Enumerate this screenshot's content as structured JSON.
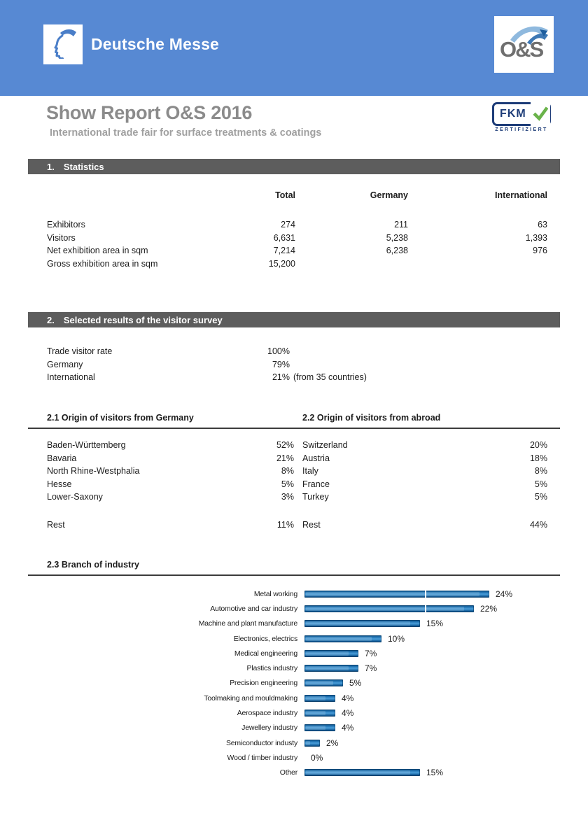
{
  "colors": {
    "header_bg": "#5789d3",
    "section_bar_bg": "#5d5d5d",
    "title_gray": "#8b8b8b",
    "fkm_navy": "#1d3c78",
    "fkm_green": "#6ab34a",
    "bar_blue": "#1b6cab"
  },
  "header": {
    "brand": "Deutsche Messe",
    "os_logo_text": "O&S"
  },
  "title": {
    "main": "Show Report O&S 2016",
    "subtitle": "International trade fair for surface treatments & coatings"
  },
  "fkm_badge": {
    "label": "FKM",
    "caption": "ZERTIFIZIERT"
  },
  "statistics": {
    "heading_number": "1.",
    "heading_text": "Statistics",
    "columns": [
      "Total",
      "Germany",
      "International"
    ],
    "rows": [
      {
        "label": "Exhibitors",
        "values": [
          "274",
          "211",
          "63"
        ]
      },
      {
        "label": "Visitors",
        "values": [
          "6,631",
          "5,238",
          "1,393"
        ]
      },
      {
        "label": "Net exhibition area in sqm",
        "values": [
          "7,214",
          "6,238",
          "976"
        ]
      },
      {
        "label": "Gross exhibition area in sqm",
        "values": [
          "15,200",
          "",
          ""
        ]
      }
    ]
  },
  "survey": {
    "heading_number": "2.",
    "heading_text": "Selected results of the visitor survey",
    "rows": [
      {
        "label": "Trade visitor rate",
        "value": "100%",
        "note": ""
      },
      {
        "label": "Germany",
        "value": "79%",
        "note": ""
      },
      {
        "label": "International",
        "value": "21%",
        "note": "(from 35 countries)"
      }
    ]
  },
  "origin_germany": {
    "heading_number": "2.1",
    "heading_text": "Origin of visitors from Germany",
    "rows": [
      {
        "label": "Baden-Württemberg",
        "value": "52%"
      },
      {
        "label": "Bavaria",
        "value": "21%"
      },
      {
        "label": "North Rhine-Westphalia",
        "value": "8%"
      },
      {
        "label": "Hesse",
        "value": "5%"
      },
      {
        "label": "Lower-Saxony",
        "value": "3%"
      }
    ],
    "rest": {
      "label": "Rest",
      "value": "11%"
    }
  },
  "origin_abroad": {
    "heading_number": "2.2",
    "heading_text": "Origin of visitors from abroad",
    "rows": [
      {
        "label": "Switzerland",
        "value": "20%"
      },
      {
        "label": "Austria",
        "value": "18%"
      },
      {
        "label": "Italy",
        "value": "8%"
      },
      {
        "label": "France",
        "value": "5%"
      },
      {
        "label": "Turkey",
        "value": "5%"
      }
    ],
    "rest": {
      "label": "Rest",
      "value": "44%"
    }
  },
  "chart_data": {
    "type": "bar",
    "orientation": "horizontal",
    "title": "2.3 Branch of industry",
    "heading_number": "2.3",
    "heading_text": "Branch of industry",
    "categories": [
      "Metal working",
      "Automotive and car industry",
      "Machine and plant manufacture",
      "Electronics, electrics",
      "Medical engineering",
      "Plastics industry",
      "Precision engineering",
      "Toolmaking and mouldmaking",
      "Aerospace industry",
      "Jewellery industry",
      "Semiconductor industy",
      "Wood / timber industry",
      "Other"
    ],
    "values": [
      24,
      22,
      15,
      10,
      7,
      7,
      5,
      4,
      4,
      4,
      2,
      0,
      15
    ],
    "value_labels": [
      "24%",
      "22%",
      "15%",
      "10%",
      "7%",
      "7%",
      "5%",
      "4%",
      "4%",
      "4%",
      "2%",
      "0%",
      "15%"
    ],
    "xlim": [
      0,
      26
    ],
    "grid": false,
    "legend_position": "none"
  }
}
